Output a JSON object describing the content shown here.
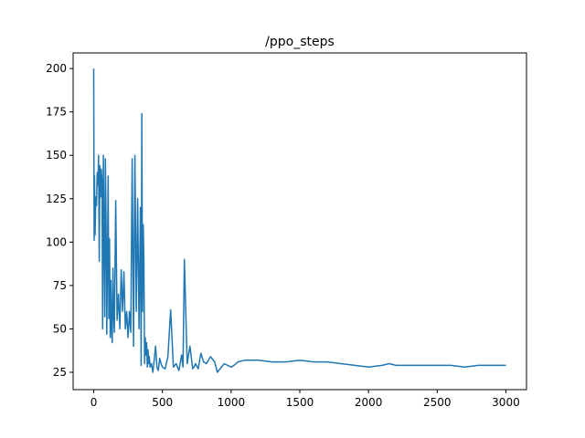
{
  "chart_data": {
    "type": "line",
    "title": "/ppo_steps",
    "xlabel": "",
    "ylabel": "",
    "xlim": [
      -150,
      3150
    ],
    "ylim": [
      15,
      209
    ],
    "xticks": [
      0,
      500,
      1000,
      1500,
      2000,
      2500,
      3000
    ],
    "yticks": [
      25,
      50,
      75,
      100,
      125,
      150,
      175,
      200
    ],
    "grid": false,
    "line_color": "#1f77b4",
    "series": [
      {
        "x": [
          0,
          3,
          6,
          10,
          15,
          20,
          25,
          30,
          35,
          40,
          45,
          50,
          55,
          60,
          65,
          70,
          75,
          80,
          85,
          90,
          95,
          100,
          105,
          110,
          115,
          120,
          125,
          130,
          135,
          140,
          145,
          150,
          160,
          170,
          180,
          190,
          200,
          210,
          220,
          230,
          240,
          250,
          260,
          270,
          280,
          290,
          300,
          310,
          320,
          330,
          340,
          345,
          350,
          355,
          360,
          365,
          370,
          375,
          380,
          385,
          390,
          395,
          400,
          405,
          410,
          420,
          430,
          440,
          450,
          460,
          470,
          480,
          490,
          500,
          520,
          540,
          560,
          580,
          600,
          620,
          640,
          650,
          660,
          680,
          700,
          720,
          730,
          740,
          760,
          780,
          800,
          820,
          850,
          880,
          900,
          950,
          1000,
          1020,
          1050,
          1100,
          1150,
          1200,
          1300,
          1400,
          1500,
          1600,
          1700,
          1800,
          1900,
          2000,
          2100,
          2150,
          2200,
          2300,
          2400,
          2500,
          2600,
          2700,
          2800,
          2900,
          3000
        ],
        "y": [
          200,
          101,
          138,
          104,
          126,
          121,
          140,
          133,
          150,
          89,
          144,
          126,
          142,
          135,
          50,
          150,
          108,
          57,
          148,
          110,
          47,
          90,
          138,
          56,
          102,
          45,
          78,
          50,
          42,
          85,
          59,
          48,
          124,
          55,
          70,
          50,
          84,
          60,
          83,
          50,
          60,
          45,
          60,
          48,
          148,
          40,
          150,
          60,
          125,
          50,
          120,
          29,
          174,
          60,
          110,
          90,
          30,
          45,
          35,
          42,
          28,
          38,
          30,
          34,
          28,
          30,
          25,
          32,
          40,
          28,
          26,
          33,
          30,
          28,
          27,
          34,
          61,
          28,
          30,
          26,
          35,
          28,
          90,
          30,
          40,
          27,
          28,
          30,
          27,
          36,
          31,
          30,
          34,
          31,
          25,
          30,
          28,
          29,
          31,
          32,
          32,
          32,
          31,
          31,
          32,
          31,
          31,
          30,
          29,
          28,
          29,
          30,
          29,
          29,
          29,
          29,
          29,
          28,
          29,
          29,
          29
        ]
      }
    ]
  }
}
